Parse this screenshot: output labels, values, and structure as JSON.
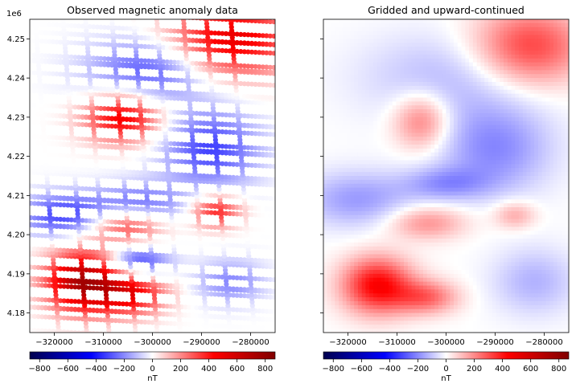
{
  "chart_data": [
    {
      "type": "scatter",
      "title": "Observed magnetic anomaly data",
      "offset_label": "1e6",
      "xlim": [
        -325000,
        -275000
      ],
      "ylim": [
        4.175,
        4.255
      ],
      "x_ticks": [
        {
          "v": -320000,
          "label": "−320000"
        },
        {
          "v": -310000,
          "label": "−310000"
        },
        {
          "v": -300000,
          "label": "−300000"
        },
        {
          "v": -290000,
          "label": "−290000"
        },
        {
          "v": -280000,
          "label": "−280000"
        }
      ],
      "y_ticks": [
        {
          "v": 4.18,
          "label": "4.18"
        },
        {
          "v": 4.19,
          "label": "4.19"
        },
        {
          "v": 4.2,
          "label": "4.20"
        },
        {
          "v": 4.21,
          "label": "4.21"
        },
        {
          "v": 4.22,
          "label": "4.22"
        },
        {
          "v": 4.23,
          "label": "4.23"
        },
        {
          "v": 4.24,
          "label": "4.24"
        },
        {
          "v": 4.25,
          "label": "4.25"
        }
      ],
      "colorbar": {
        "label": "nT",
        "range": [
          -870,
          870
        ],
        "cmap": "seismic",
        "ticks": [
          {
            "v": -800,
            "label": "−800"
          },
          {
            "v": -600,
            "label": "−600"
          },
          {
            "v": -400,
            "label": "−400"
          },
          {
            "v": -200,
            "label": "−200"
          },
          {
            "v": 0,
            "label": "0"
          },
          {
            "v": 200,
            "label": "200"
          },
          {
            "v": 400,
            "label": "400"
          },
          {
            "v": 600,
            "label": "600"
          },
          {
            "v": 800,
            "label": "800"
          }
        ]
      },
      "anomalies_nT": [
        {
          "x": -284000,
          "y": 4.25,
          "sx": 9000,
          "sy": 0.007,
          "amp": 520
        },
        {
          "x": -306000,
          "y": 4.23,
          "sx": 5500,
          "sy": 0.0045,
          "amp": 480
        },
        {
          "x": -303000,
          "y": 4.207,
          "sx": 6500,
          "sy": 0.004,
          "amp": -320
        },
        {
          "x": -305000,
          "y": 4.203,
          "sx": 5500,
          "sy": 0.0035,
          "amp": 420
        },
        {
          "x": -287000,
          "y": 4.206,
          "sx": 3500,
          "sy": 0.003,
          "amp": 380
        },
        {
          "x": -314000,
          "y": 4.188,
          "sx": 5500,
          "sy": 0.0055,
          "amp": 720
        },
        {
          "x": -304000,
          "y": 4.185,
          "sx": 5000,
          "sy": 0.004,
          "amp": 420
        },
        {
          "x": -318000,
          "y": 4.205,
          "sx": 6500,
          "sy": 0.004,
          "amp": -320
        },
        {
          "x": -300000,
          "y": 4.242,
          "sx": 9000,
          "sy": 0.006,
          "amp": -300
        },
        {
          "x": -288000,
          "y": 4.222,
          "sx": 7000,
          "sy": 0.007,
          "amp": -320
        },
        {
          "x": -303000,
          "y": 4.193,
          "sx": 4500,
          "sy": 0.003,
          "amp": -350
        },
        {
          "x": -284000,
          "y": 4.188,
          "sx": 5000,
          "sy": 0.004,
          "amp": -200
        }
      ]
    },
    {
      "type": "heatmap",
      "title": "Gridded and upward-continued",
      "xlim": [
        -325000,
        -275000
      ],
      "ylim": [
        4.175,
        4.255
      ],
      "x_ticks": [
        {
          "v": -320000,
          "label": "−320000"
        },
        {
          "v": -310000,
          "label": "−310000"
        },
        {
          "v": -300000,
          "label": "−300000"
        },
        {
          "v": -290000,
          "label": "−290000"
        },
        {
          "v": -280000,
          "label": "−280000"
        }
      ],
      "colorbar": {
        "label": "nT",
        "range": [
          -870,
          870
        ],
        "cmap": "seismic",
        "ticks": [
          {
            "v": -800,
            "label": "−800"
          },
          {
            "v": -600,
            "label": "−600"
          },
          {
            "v": -400,
            "label": "−400"
          },
          {
            "v": -200,
            "label": "−200"
          },
          {
            "v": 0,
            "label": "0"
          },
          {
            "v": 200,
            "label": "200"
          },
          {
            "v": 400,
            "label": "400"
          },
          {
            "v": 600,
            "label": "600"
          },
          {
            "v": 800,
            "label": "800"
          }
        ]
      },
      "anomalies_nT": [
        {
          "x": -283000,
          "y": 4.248,
          "sx": 8000,
          "sy": 0.007,
          "amp": 330
        },
        {
          "x": -305000,
          "y": 4.229,
          "sx": 4000,
          "sy": 0.005,
          "amp": 240
        },
        {
          "x": -304000,
          "y": 4.203,
          "sx": 5500,
          "sy": 0.003,
          "amp": 190
        },
        {
          "x": -286000,
          "y": 4.205,
          "sx": 3000,
          "sy": 0.0025,
          "amp": 150
        },
        {
          "x": -314000,
          "y": 4.187,
          "sx": 5000,
          "sy": 0.005,
          "amp": 440
        },
        {
          "x": -304000,
          "y": 4.184,
          "sx": 4500,
          "sy": 0.003,
          "amp": 250
        },
        {
          "x": -300000,
          "y": 4.24,
          "sx": 12000,
          "sy": 0.008,
          "amp": -120
        },
        {
          "x": -318000,
          "y": 4.209,
          "sx": 8000,
          "sy": 0.005,
          "amp": -170
        },
        {
          "x": -290000,
          "y": 4.222,
          "sx": 8000,
          "sy": 0.008,
          "amp": -200
        },
        {
          "x": -300000,
          "y": 4.213,
          "sx": 6000,
          "sy": 0.003,
          "amp": -160
        },
        {
          "x": -282000,
          "y": 4.188,
          "sx": 6000,
          "sy": 0.006,
          "amp": -130
        }
      ]
    }
  ]
}
